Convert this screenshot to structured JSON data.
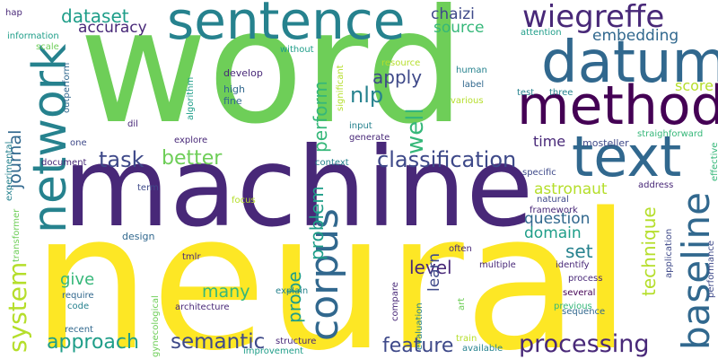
{
  "palette": {
    "dark_purple": "#440154",
    "indigo": "#482878",
    "slate_blue": "#3e4989",
    "steel_blue": "#31688e",
    "teal": "#26828e",
    "sea_green": "#1f9e89",
    "green": "#35b779",
    "light_green": "#6ece58",
    "lime": "#b5de2b",
    "yellow": "#fde725"
  },
  "words": [
    {
      "text": "word",
      "color": "light_green"
    },
    {
      "text": "neural",
      "color": "yellow"
    },
    {
      "text": "machine",
      "color": "indigo"
    },
    {
      "text": "sentence",
      "color": "teal"
    },
    {
      "text": "datum",
      "color": "steel_blue"
    },
    {
      "text": "method",
      "color": "dark_purple"
    },
    {
      "text": "text",
      "color": "steel_blue"
    },
    {
      "text": "network",
      "color": "teal"
    },
    {
      "text": "corpus",
      "color": "steel_blue"
    },
    {
      "text": "wiegreffe",
      "color": "indigo"
    },
    {
      "text": "baseline",
      "color": "steel_blue"
    },
    {
      "text": "system",
      "color": "lime"
    },
    {
      "text": "classification",
      "color": "slate_blue"
    },
    {
      "text": "processing",
      "color": "indigo"
    },
    {
      "text": "semantic",
      "color": "slate_blue"
    },
    {
      "text": "approach",
      "color": "sea_green"
    },
    {
      "text": "feature",
      "color": "slate_blue"
    },
    {
      "text": "task",
      "color": "slate_blue"
    },
    {
      "text": "better",
      "color": "light_green"
    },
    {
      "text": "well",
      "color": "green"
    },
    {
      "text": "nlp",
      "color": "teal"
    },
    {
      "text": "apply",
      "color": "slate_blue"
    },
    {
      "text": "dataset",
      "color": "sea_green"
    },
    {
      "text": "problem",
      "color": "sea_green"
    },
    {
      "text": "perform",
      "color": "green"
    },
    {
      "text": "journal",
      "color": "steel_blue"
    },
    {
      "text": "level",
      "color": "indigo"
    },
    {
      "text": "technique",
      "color": "lime"
    },
    {
      "text": "set",
      "color": "teal"
    },
    {
      "text": "probe",
      "color": "sea_green"
    },
    {
      "text": "many",
      "color": "green"
    },
    {
      "text": "give",
      "color": "green"
    },
    {
      "text": "accuracy",
      "color": "indigo"
    },
    {
      "text": "source",
      "color": "green"
    },
    {
      "text": "chaizi",
      "color": "slate_blue"
    },
    {
      "text": "embedding",
      "color": "steel_blue"
    },
    {
      "text": "score",
      "color": "lime"
    },
    {
      "text": "time",
      "color": "indigo"
    },
    {
      "text": "astronaut",
      "color": "lime"
    },
    {
      "text": "question",
      "color": "steel_blue"
    },
    {
      "text": "domain",
      "color": "sea_green"
    },
    {
      "text": "learn",
      "color": "slate_blue"
    },
    {
      "text": "design",
      "color": "steel_blue"
    },
    {
      "text": "mosteller",
      "color": "slate_blue"
    },
    {
      "text": "information",
      "color": "sea_green"
    },
    {
      "text": "scale",
      "color": "light_green"
    },
    {
      "text": "hap",
      "color": "indigo"
    },
    {
      "text": "high",
      "color": "steel_blue"
    },
    {
      "text": "fine",
      "color": "steel_blue"
    },
    {
      "text": "develop",
      "color": "indigo"
    },
    {
      "text": "algorithm",
      "color": "sea_green"
    },
    {
      "text": "without",
      "color": "sea_green"
    },
    {
      "text": "resource",
      "color": "lime"
    },
    {
      "text": "human",
      "color": "teal"
    },
    {
      "text": "label",
      "color": "steel_blue"
    },
    {
      "text": "attention",
      "color": "sea_green"
    },
    {
      "text": "test",
      "color": "teal"
    },
    {
      "text": "three",
      "color": "teal"
    },
    {
      "text": "various",
      "color": "lime"
    },
    {
      "text": "significant",
      "color": "lime"
    },
    {
      "text": "outperform",
      "color": "steel_blue"
    },
    {
      "text": "dil",
      "color": "indigo"
    },
    {
      "text": "one",
      "color": "slate_blue"
    },
    {
      "text": "explore",
      "color": "indigo"
    },
    {
      "text": "input",
      "color": "teal"
    },
    {
      "text": "generate",
      "color": "indigo"
    },
    {
      "text": "context",
      "color": "teal"
    },
    {
      "text": "document",
      "color": "indigo"
    },
    {
      "text": "specific",
      "color": "slate_blue"
    },
    {
      "text": "straighforward",
      "color": "green"
    },
    {
      "text": "effective",
      "color": "green"
    },
    {
      "text": "experimental",
      "color": "teal"
    },
    {
      "text": "transformer",
      "color": "light_green"
    },
    {
      "text": "term",
      "color": "slate_blue"
    },
    {
      "text": "focus",
      "color": "lime"
    },
    {
      "text": "natural",
      "color": "slate_blue"
    },
    {
      "text": "framework",
      "color": "indigo"
    },
    {
      "text": "address",
      "color": "indigo"
    },
    {
      "text": "tmlr",
      "color": "indigo"
    },
    {
      "text": "require",
      "color": "steel_blue"
    },
    {
      "text": "code",
      "color": "teal"
    },
    {
      "text": "explain",
      "color": "teal"
    },
    {
      "text": "architecture",
      "color": "indigo"
    },
    {
      "text": "gynecological",
      "color": "light_green"
    },
    {
      "text": "recent",
      "color": "steel_blue"
    },
    {
      "text": "improvement",
      "color": "sea_green"
    },
    {
      "text": "structure",
      "color": "indigo"
    },
    {
      "text": "train",
      "color": "lime"
    },
    {
      "text": "available",
      "color": "teal"
    },
    {
      "text": "compare",
      "color": "indigo"
    },
    {
      "text": "evaluation",
      "color": "teal"
    },
    {
      "text": "art",
      "color": "light_green"
    },
    {
      "text": "often",
      "color": "indigo"
    },
    {
      "text": "multiple",
      "color": "indigo"
    },
    {
      "text": "identify",
      "color": "indigo"
    },
    {
      "text": "process",
      "color": "indigo"
    },
    {
      "text": "several",
      "color": "dark_purple"
    },
    {
      "text": "previous",
      "color": "green"
    },
    {
      "text": "sequence",
      "color": "steel_blue"
    },
    {
      "text": "application",
      "color": "slate_blue"
    },
    {
      "text": "performance",
      "color": "slate_blue"
    }
  ]
}
